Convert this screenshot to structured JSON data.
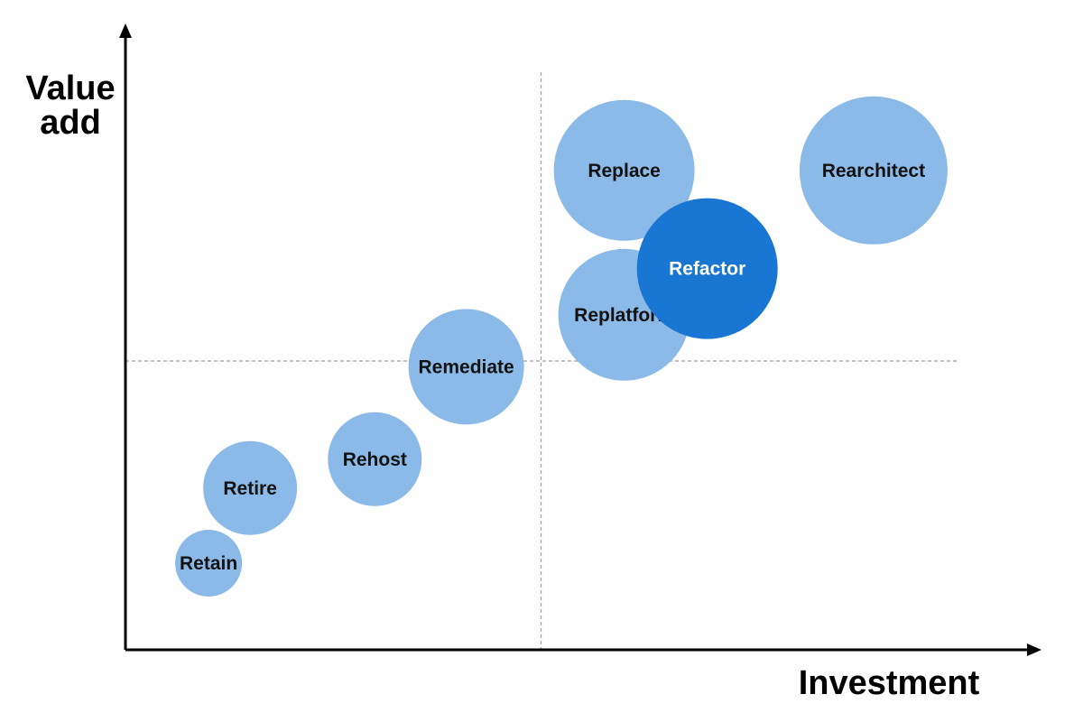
{
  "chart_data": {
    "type": "scatter",
    "subtype": "bubble",
    "xlabel": "Investment",
    "ylabel_lines": [
      "Value",
      "add"
    ],
    "xlim": [
      0,
      100
    ],
    "ylim": [
      0,
      100
    ],
    "grid": false,
    "quadrant_divider": {
      "x": 50,
      "y": 50
    },
    "colors": {
      "bubble": "#8BB9E8",
      "highlight": "#1976D2",
      "axis": "#000000",
      "divider": "#9E9E9E",
      "label": "#111111",
      "highlight_label": "#ffffff"
    },
    "points": [
      {
        "label": "Retain",
        "x": 10,
        "y": 15,
        "size": 37,
        "highlight": false
      },
      {
        "label": "Retire",
        "x": 15,
        "y": 28,
        "size": 52,
        "highlight": false
      },
      {
        "label": "Rehost",
        "x": 30,
        "y": 33,
        "size": 52,
        "highlight": false
      },
      {
        "label": "Remediate",
        "x": 41,
        "y": 49,
        "size": 64,
        "highlight": false
      },
      {
        "label": "Replatform",
        "x": 60,
        "y": 58,
        "size": 73,
        "highlight": false
      },
      {
        "label": "Replace",
        "x": 60,
        "y": 83,
        "size": 78,
        "highlight": false
      },
      {
        "label": "Refactor",
        "x": 70,
        "y": 66,
        "size": 78,
        "highlight": true
      },
      {
        "label": "Rearchitect",
        "x": 90,
        "y": 83,
        "size": 82,
        "highlight": false
      }
    ]
  }
}
